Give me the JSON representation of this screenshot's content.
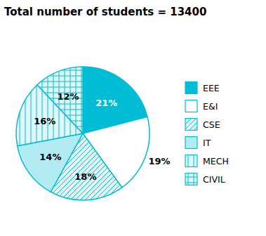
{
  "chart_data": {
    "type": "pie",
    "title": "Total number of students = 13400",
    "categories": [
      "EEE",
      "E&I",
      "CSE",
      "IT",
      "MECH",
      "CIVIL"
    ],
    "values": [
      21,
      19,
      18,
      14,
      16,
      12
    ],
    "value_labels": [
      "21%",
      "19%",
      "18%",
      "14%",
      "16%",
      "12%"
    ],
    "colors": [
      "#00bcd4",
      "#ffffff",
      "#e0f7fa",
      "#b2ebf2",
      "#e0f7fa",
      "#e0f7fa"
    ],
    "data_labels": true,
    "legend": "right"
  }
}
